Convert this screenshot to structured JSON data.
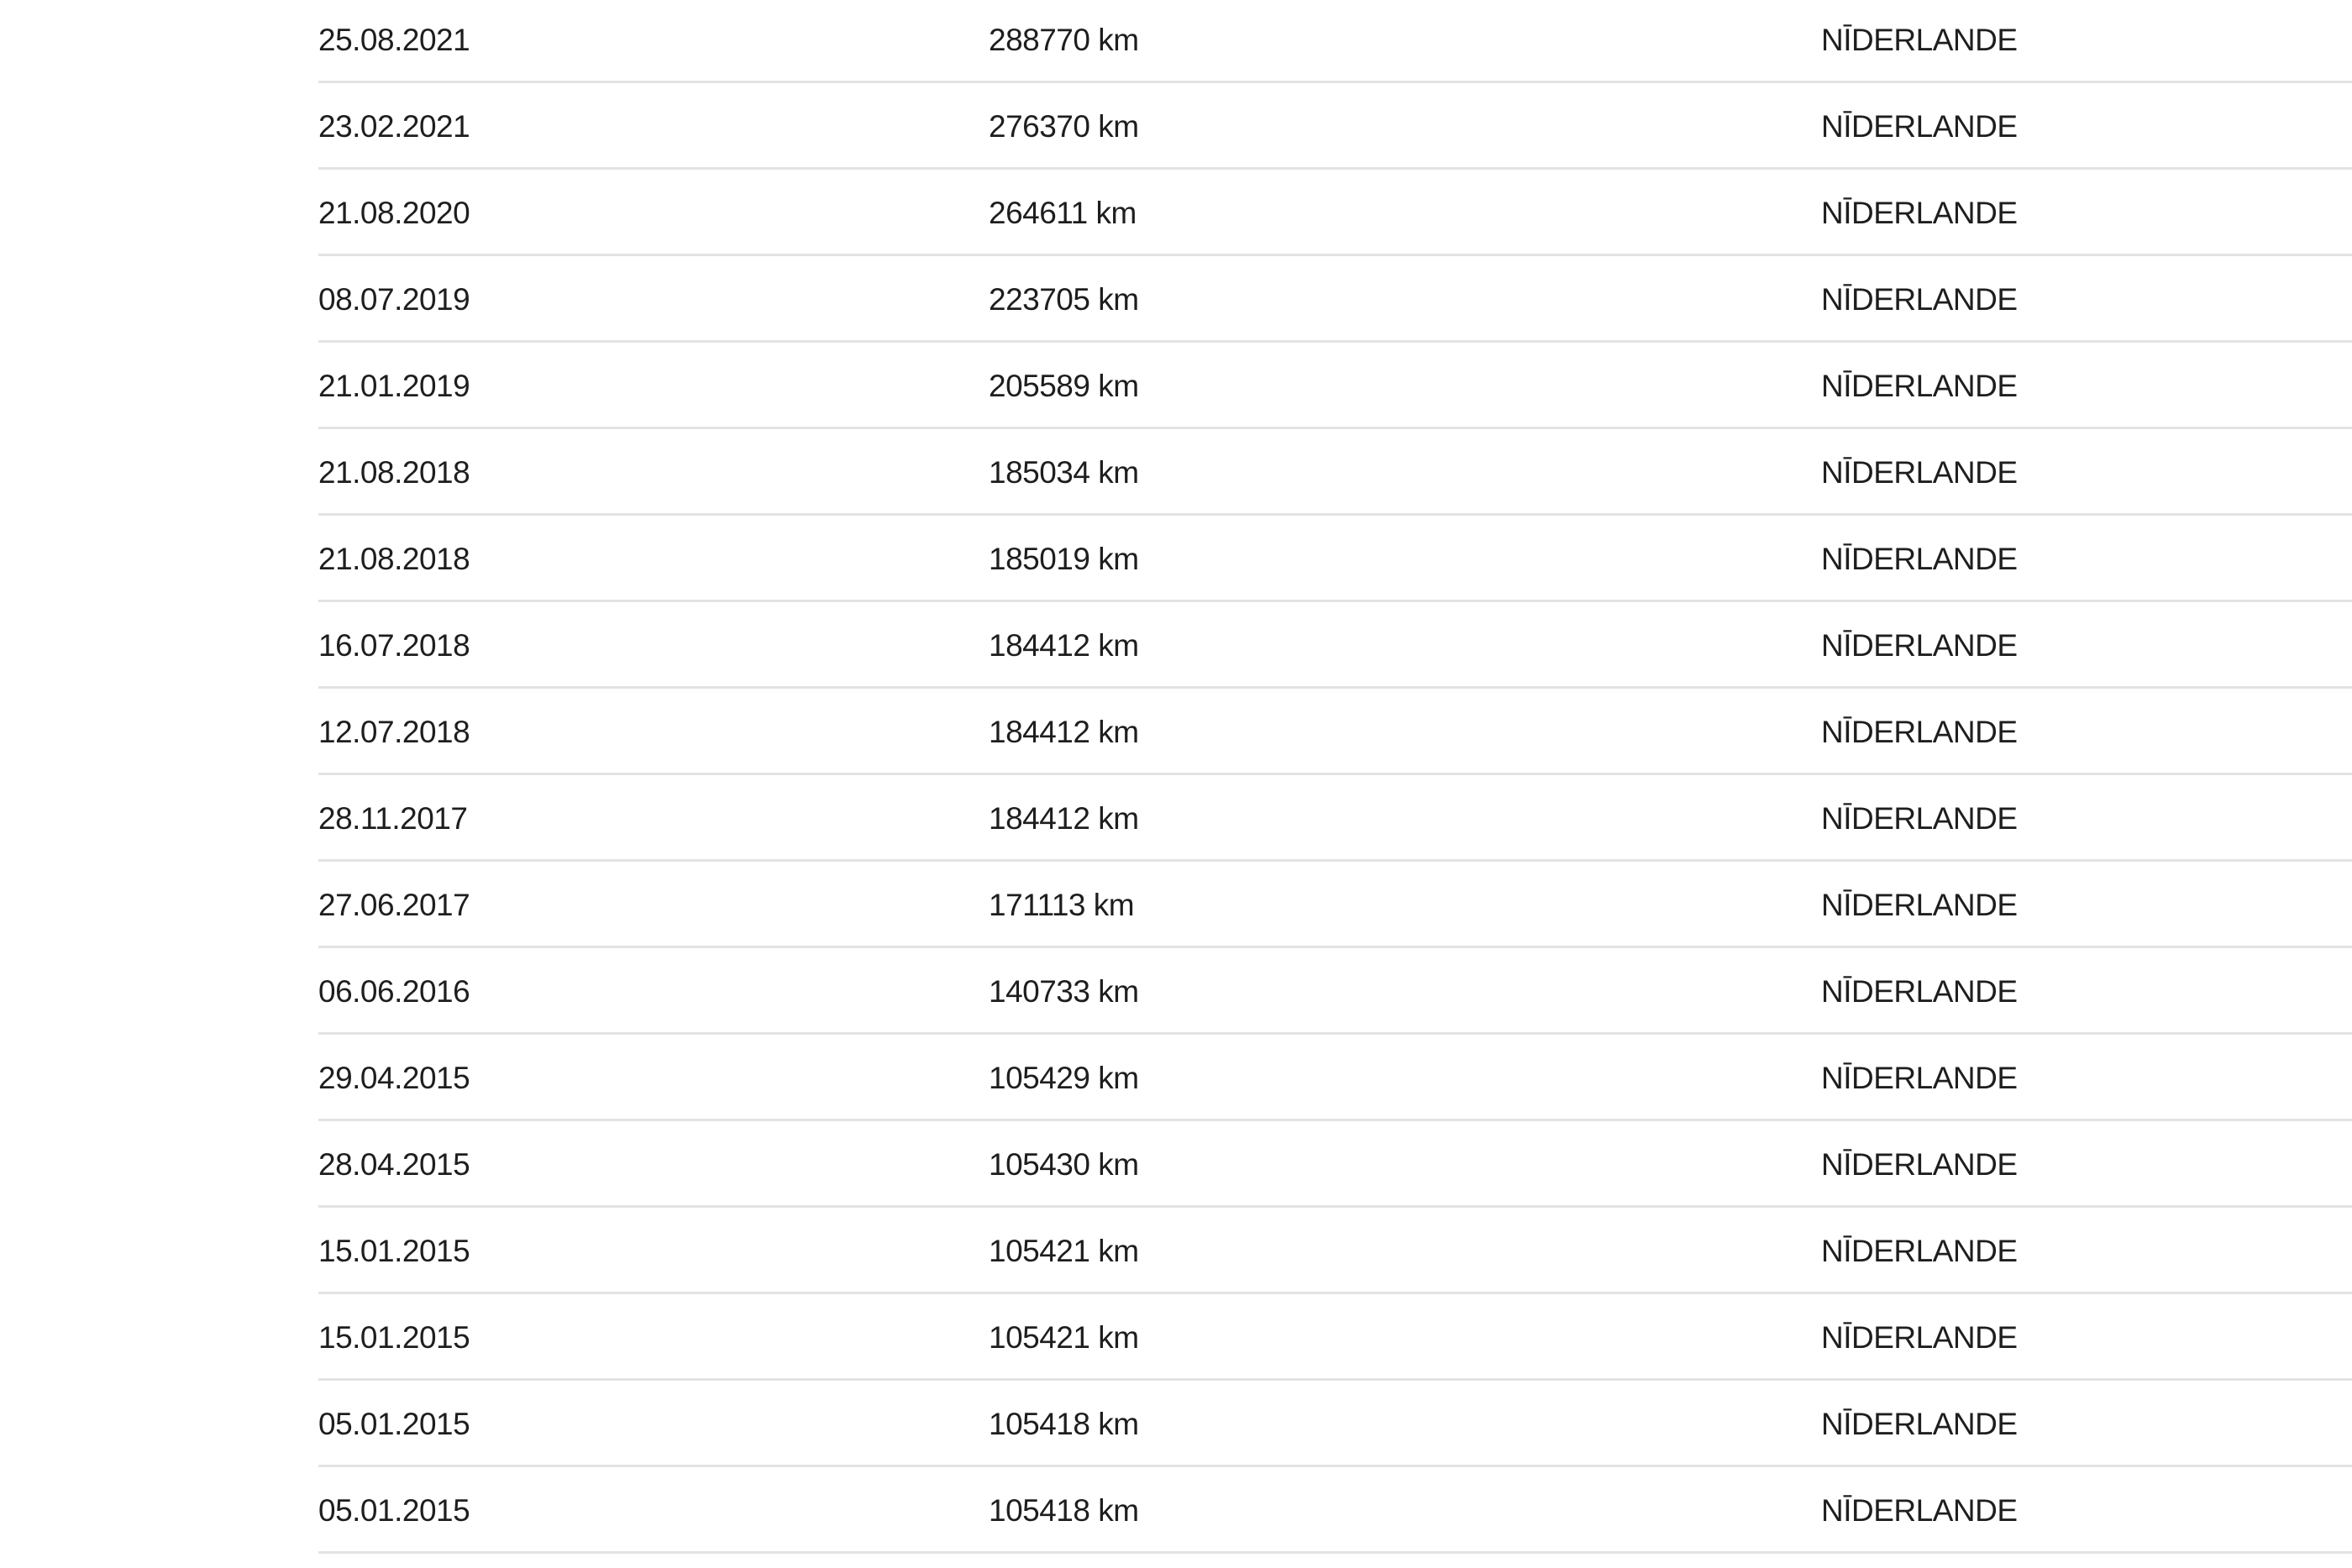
{
  "rows": [
    {
      "date": "25.08.2021",
      "mileage": "288770 km",
      "country": "NĪDERLANDE"
    },
    {
      "date": "23.02.2021",
      "mileage": "276370 km",
      "country": "NĪDERLANDE"
    },
    {
      "date": "21.08.2020",
      "mileage": "264611 km",
      "country": "NĪDERLANDE"
    },
    {
      "date": "08.07.2019",
      "mileage": "223705 km",
      "country": "NĪDERLANDE"
    },
    {
      "date": "21.01.2019",
      "mileage": "205589 km",
      "country": "NĪDERLANDE"
    },
    {
      "date": "21.08.2018",
      "mileage": "185034 km",
      "country": "NĪDERLANDE"
    },
    {
      "date": "21.08.2018",
      "mileage": "185019 km",
      "country": "NĪDERLANDE"
    },
    {
      "date": "16.07.2018",
      "mileage": "184412 km",
      "country": "NĪDERLANDE"
    },
    {
      "date": "12.07.2018",
      "mileage": "184412 km",
      "country": "NĪDERLANDE"
    },
    {
      "date": "28.11.2017",
      "mileage": "184412 km",
      "country": "NĪDERLANDE"
    },
    {
      "date": "27.06.2017",
      "mileage": "171113 km",
      "country": "NĪDERLANDE"
    },
    {
      "date": "06.06.2016",
      "mileage": "140733 km",
      "country": "NĪDERLANDE"
    },
    {
      "date": "29.04.2015",
      "mileage": "105429 km",
      "country": "NĪDERLANDE"
    },
    {
      "date": "28.04.2015",
      "mileage": "105430 km",
      "country": "NĪDERLANDE"
    },
    {
      "date": "15.01.2015",
      "mileage": "105421 km",
      "country": "NĪDERLANDE"
    },
    {
      "date": "15.01.2015",
      "mileage": "105421 km",
      "country": "NĪDERLANDE"
    },
    {
      "date": "05.01.2015",
      "mileage": "105418 km",
      "country": "NĪDERLANDE"
    },
    {
      "date": "05.01.2015",
      "mileage": "105418 km",
      "country": "NĪDERLANDE"
    }
  ]
}
